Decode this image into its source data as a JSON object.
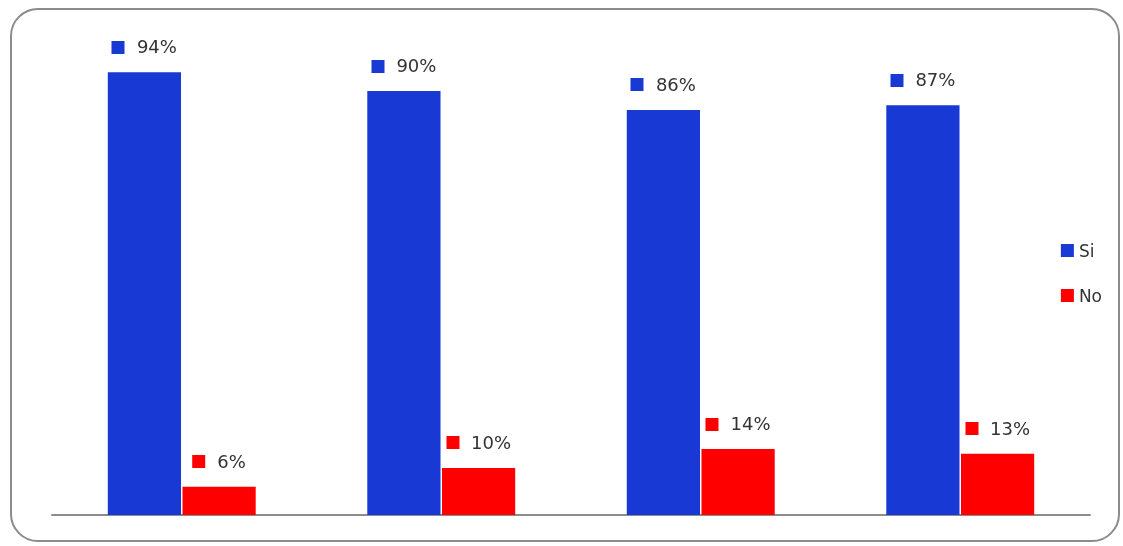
{
  "chart_data": {
    "type": "bar",
    "categories": [
      null,
      null,
      null,
      null
    ],
    "series": [
      {
        "name": "Si",
        "color": "#1939d4",
        "values": [
          94,
          90,
          86,
          87
        ],
        "value_labels": [
          "94%",
          "90%",
          "86%",
          "87%"
        ]
      },
      {
        "name": "No",
        "color": "#ff0000",
        "values": [
          6,
          10,
          14,
          13
        ],
        "value_labels": [
          "6%",
          "10%",
          "14%",
          "13%"
        ]
      }
    ],
    "legend": "right",
    "grid": false,
    "tick_labels": false
  }
}
